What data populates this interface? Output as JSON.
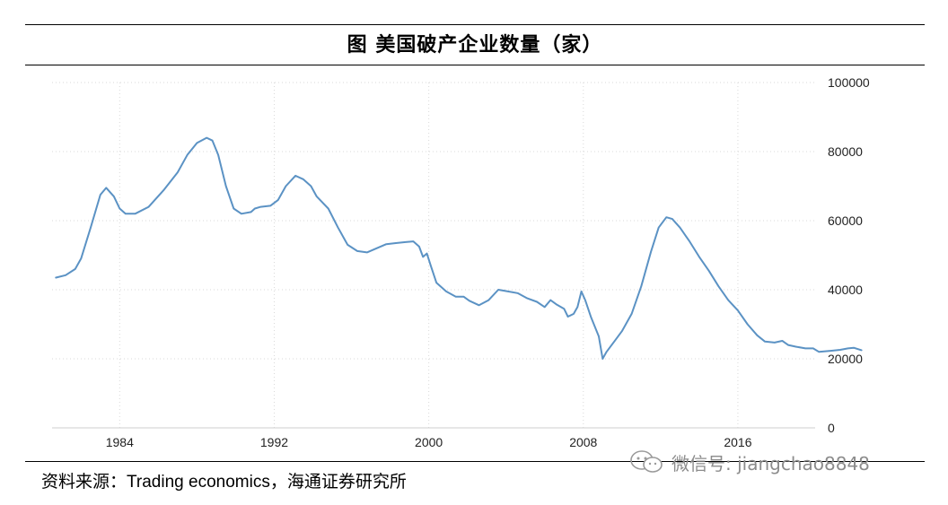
{
  "title": "图  美国破产企业数量（家）",
  "source": {
    "prefix": "资料来源：",
    "en": "Trading economics",
    "suffix": "，海通证券研究所"
  },
  "watermark": {
    "text": "微信号: jiangchao8848",
    "icon": "wechat-icon"
  },
  "colors": {
    "line": "#5b92c4",
    "grid": "#d9d9d9",
    "axis": "#cfcfcf"
  },
  "chart_data": {
    "type": "line",
    "title": "图  美国破产企业数量（家）",
    "xlabel": "",
    "ylabel": "",
    "xlim": [
      1980.5,
      2020.0
    ],
    "ylim": [
      0,
      100000
    ],
    "x_ticks": [
      1984,
      1992,
      2000,
      2008,
      2016
    ],
    "y_ticks": [
      0,
      20000,
      40000,
      60000,
      80000,
      100000
    ],
    "grid": true,
    "legend": "none",
    "series": [
      {
        "points": [
          [
            1980.7,
            43500
          ],
          [
            1981.2,
            44200
          ],
          [
            1981.7,
            46000
          ],
          [
            1982.0,
            49000
          ],
          [
            1982.5,
            58000
          ],
          [
            1983.0,
            67500
          ],
          [
            1983.3,
            69500
          ],
          [
            1983.7,
            67000
          ],
          [
            1984.0,
            63500
          ],
          [
            1984.3,
            62000
          ],
          [
            1984.8,
            62000
          ],
          [
            1985.5,
            64000
          ],
          [
            1986.3,
            69000
          ],
          [
            1987.0,
            74000
          ],
          [
            1987.5,
            79000
          ],
          [
            1988.0,
            82500
          ],
          [
            1988.5,
            84000
          ],
          [
            1988.8,
            83200
          ],
          [
            1989.1,
            79000
          ],
          [
            1989.5,
            70000
          ],
          [
            1989.9,
            63500
          ],
          [
            1990.3,
            62000
          ],
          [
            1990.8,
            62500
          ],
          [
            1991.0,
            63500
          ],
          [
            1991.3,
            64000
          ],
          [
            1991.8,
            64300
          ],
          [
            1992.2,
            66000
          ],
          [
            1992.6,
            70000
          ],
          [
            1993.1,
            73000
          ],
          [
            1993.5,
            72000
          ],
          [
            1993.9,
            70000
          ],
          [
            1994.2,
            67000
          ],
          [
            1994.8,
            63500
          ],
          [
            1995.3,
            58000
          ],
          [
            1995.8,
            53000
          ],
          [
            1996.3,
            51200
          ],
          [
            1996.8,
            50800
          ],
          [
            1997.3,
            52000
          ],
          [
            1997.8,
            53200
          ],
          [
            1998.3,
            53500
          ],
          [
            1998.8,
            53800
          ],
          [
            1999.2,
            54000
          ],
          [
            1999.5,
            52500
          ],
          [
            1999.7,
            49500
          ],
          [
            1999.9,
            50500
          ],
          [
            2000.1,
            47000
          ],
          [
            2000.4,
            42000
          ],
          [
            2000.9,
            39500
          ],
          [
            2001.4,
            38000
          ],
          [
            2001.8,
            38000
          ],
          [
            2002.1,
            36800
          ],
          [
            2002.6,
            35500
          ],
          [
            2003.1,
            37000
          ],
          [
            2003.6,
            40000
          ],
          [
            2004.1,
            39500
          ],
          [
            2004.6,
            39000
          ],
          [
            2005.1,
            37500
          ],
          [
            2005.6,
            36500
          ],
          [
            2006.0,
            35000
          ],
          [
            2006.3,
            37000
          ],
          [
            2006.6,
            35800
          ],
          [
            2007.0,
            34500
          ],
          [
            2007.2,
            32200
          ],
          [
            2007.5,
            33000
          ],
          [
            2007.7,
            35000
          ],
          [
            2007.9,
            39500
          ],
          [
            2008.1,
            37000
          ],
          [
            2008.4,
            32000
          ],
          [
            2008.8,
            26500
          ],
          [
            2009.0,
            20000
          ],
          [
            2009.2,
            22000
          ],
          [
            2009.6,
            25000
          ],
          [
            2010.0,
            28000
          ],
          [
            2010.5,
            33000
          ],
          [
            2011.0,
            41000
          ],
          [
            2011.5,
            51000
          ],
          [
            2011.9,
            58000
          ],
          [
            2012.3,
            61000
          ],
          [
            2012.6,
            60500
          ],
          [
            2013.0,
            58000
          ],
          [
            2013.5,
            54000
          ],
          [
            2014.0,
            49500
          ],
          [
            2014.5,
            45500
          ],
          [
            2015.0,
            41000
          ],
          [
            2015.5,
            37000
          ],
          [
            2016.0,
            34000
          ],
          [
            2016.5,
            30000
          ],
          [
            2017.0,
            26800
          ],
          [
            2017.4,
            25000
          ],
          [
            2017.9,
            24700
          ],
          [
            2018.3,
            25200
          ],
          [
            2018.6,
            24000
          ],
          [
            2019.0,
            23500
          ],
          [
            2019.5,
            23000
          ],
          [
            2019.9,
            23000
          ],
          [
            2020.2,
            22000
          ],
          [
            2020.8,
            22300
          ],
          [
            2021.3,
            22600
          ],
          [
            2021.7,
            23000
          ],
          [
            2022.0,
            23200
          ],
          [
            2022.4,
            22500
          ]
        ]
      }
    ]
  }
}
